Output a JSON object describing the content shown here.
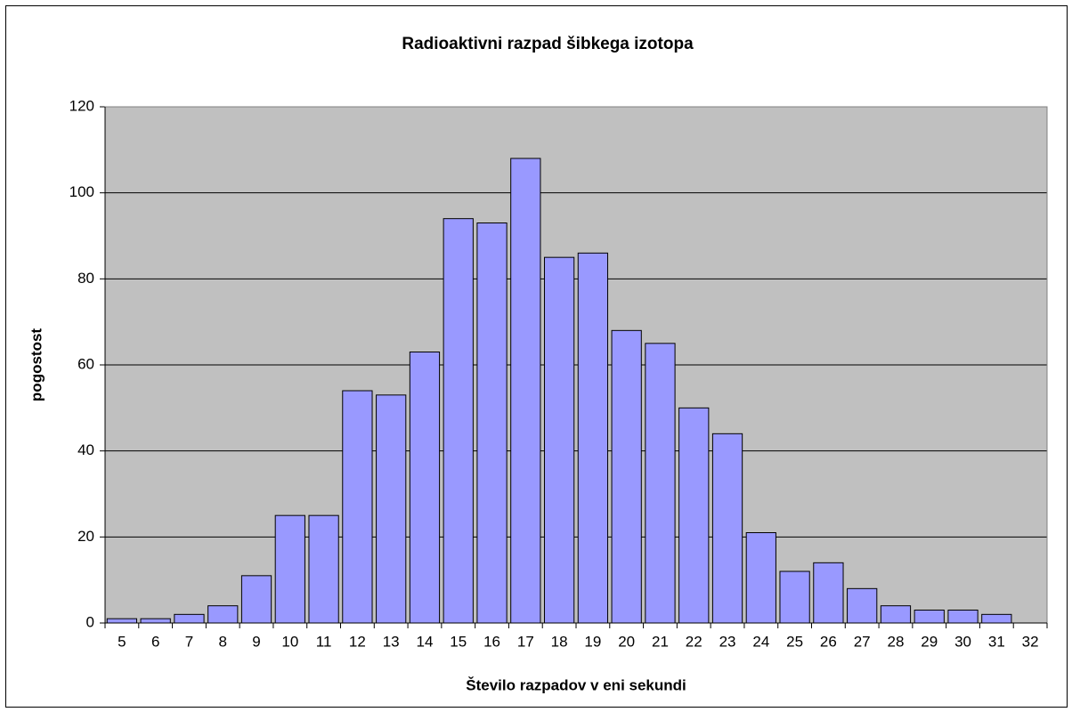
{
  "chart_data": {
    "type": "bar",
    "title": "Radioaktivni razpad šibkega izotopa",
    "x_label": "Število razpadov v eni sekundi",
    "y_label": "pogostost",
    "categories": [
      "5",
      "6",
      "7",
      "8",
      "9",
      "10",
      "11",
      "12",
      "13",
      "14",
      "15",
      "16",
      "17",
      "18",
      "19",
      "20",
      "21",
      "22",
      "23",
      "24",
      "25",
      "26",
      "27",
      "28",
      "29",
      "30",
      "31",
      "32"
    ],
    "values": [
      1,
      1,
      2,
      4,
      11,
      25,
      25,
      54,
      53,
      63,
      94,
      93,
      108,
      85,
      86,
      68,
      65,
      50,
      44,
      21,
      12,
      14,
      8,
      4,
      3,
      3,
      2,
      0
    ],
    "color": "#9999ff",
    "ylim": [
      0,
      120
    ],
    "yticks": [
      0,
      20,
      40,
      60,
      80,
      100,
      120
    ],
    "grid": true
  }
}
